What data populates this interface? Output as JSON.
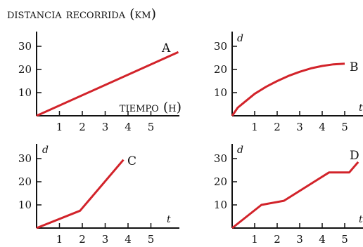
{
  "figure": {
    "title": "distancia recorrida (km)"
  },
  "chart_data": [
    {
      "type": "line",
      "name": "A",
      "xlabel": "tiempo (h)",
      "ylabel": "",
      "x_ticks": [
        "1",
        "2",
        "3",
        "4",
        "5"
      ],
      "y_ticks": [
        "10",
        "20",
        "30"
      ],
      "xlim": [
        0,
        6.2
      ],
      "ylim": [
        0,
        35
      ],
      "x": [
        0,
        6.2
      ],
      "y": [
        0,
        27.5
      ]
    },
    {
      "type": "line",
      "name": "B",
      "xlabel": "t",
      "ylabel": "d",
      "x_ticks": [
        "1",
        "2",
        "3",
        "4",
        "5"
      ],
      "y_ticks": [
        "10",
        "20",
        "30"
      ],
      "xlim": [
        0,
        5.6
      ],
      "ylim": [
        0,
        35
      ],
      "x": [
        0,
        0.25,
        0.5,
        1,
        1.5,
        2,
        2.5,
        3,
        3.5,
        4,
        4.5,
        5
      ],
      "y": [
        0,
        3.5,
        5.5,
        9.5,
        12.5,
        15,
        17.2,
        19,
        20.5,
        21.5,
        22.2,
        22.5
      ]
    },
    {
      "type": "line",
      "name": "C",
      "xlabel": "t",
      "ylabel": "d",
      "x_ticks": [
        "1",
        "2",
        "3",
        "4",
        "5"
      ],
      "y_ticks": [
        "10",
        "20",
        "30"
      ],
      "xlim": [
        0,
        6.2
      ],
      "ylim": [
        0,
        35
      ],
      "x": [
        0,
        1.9,
        3.8
      ],
      "y": [
        0,
        7.5,
        29.5
      ]
    },
    {
      "type": "line",
      "name": "D",
      "xlabel": "t",
      "ylabel": "d",
      "x_ticks": [
        "1",
        "2",
        "3",
        "4",
        "5"
      ],
      "y_ticks": [
        "10",
        "20",
        "30"
      ],
      "xlim": [
        0,
        5.6
      ],
      "ylim": [
        0,
        35
      ],
      "x": [
        0,
        1.3,
        2.3,
        4.3,
        5.2,
        5.6
      ],
      "y": [
        0,
        10,
        11.8,
        24,
        24,
        28.5
      ]
    }
  ]
}
